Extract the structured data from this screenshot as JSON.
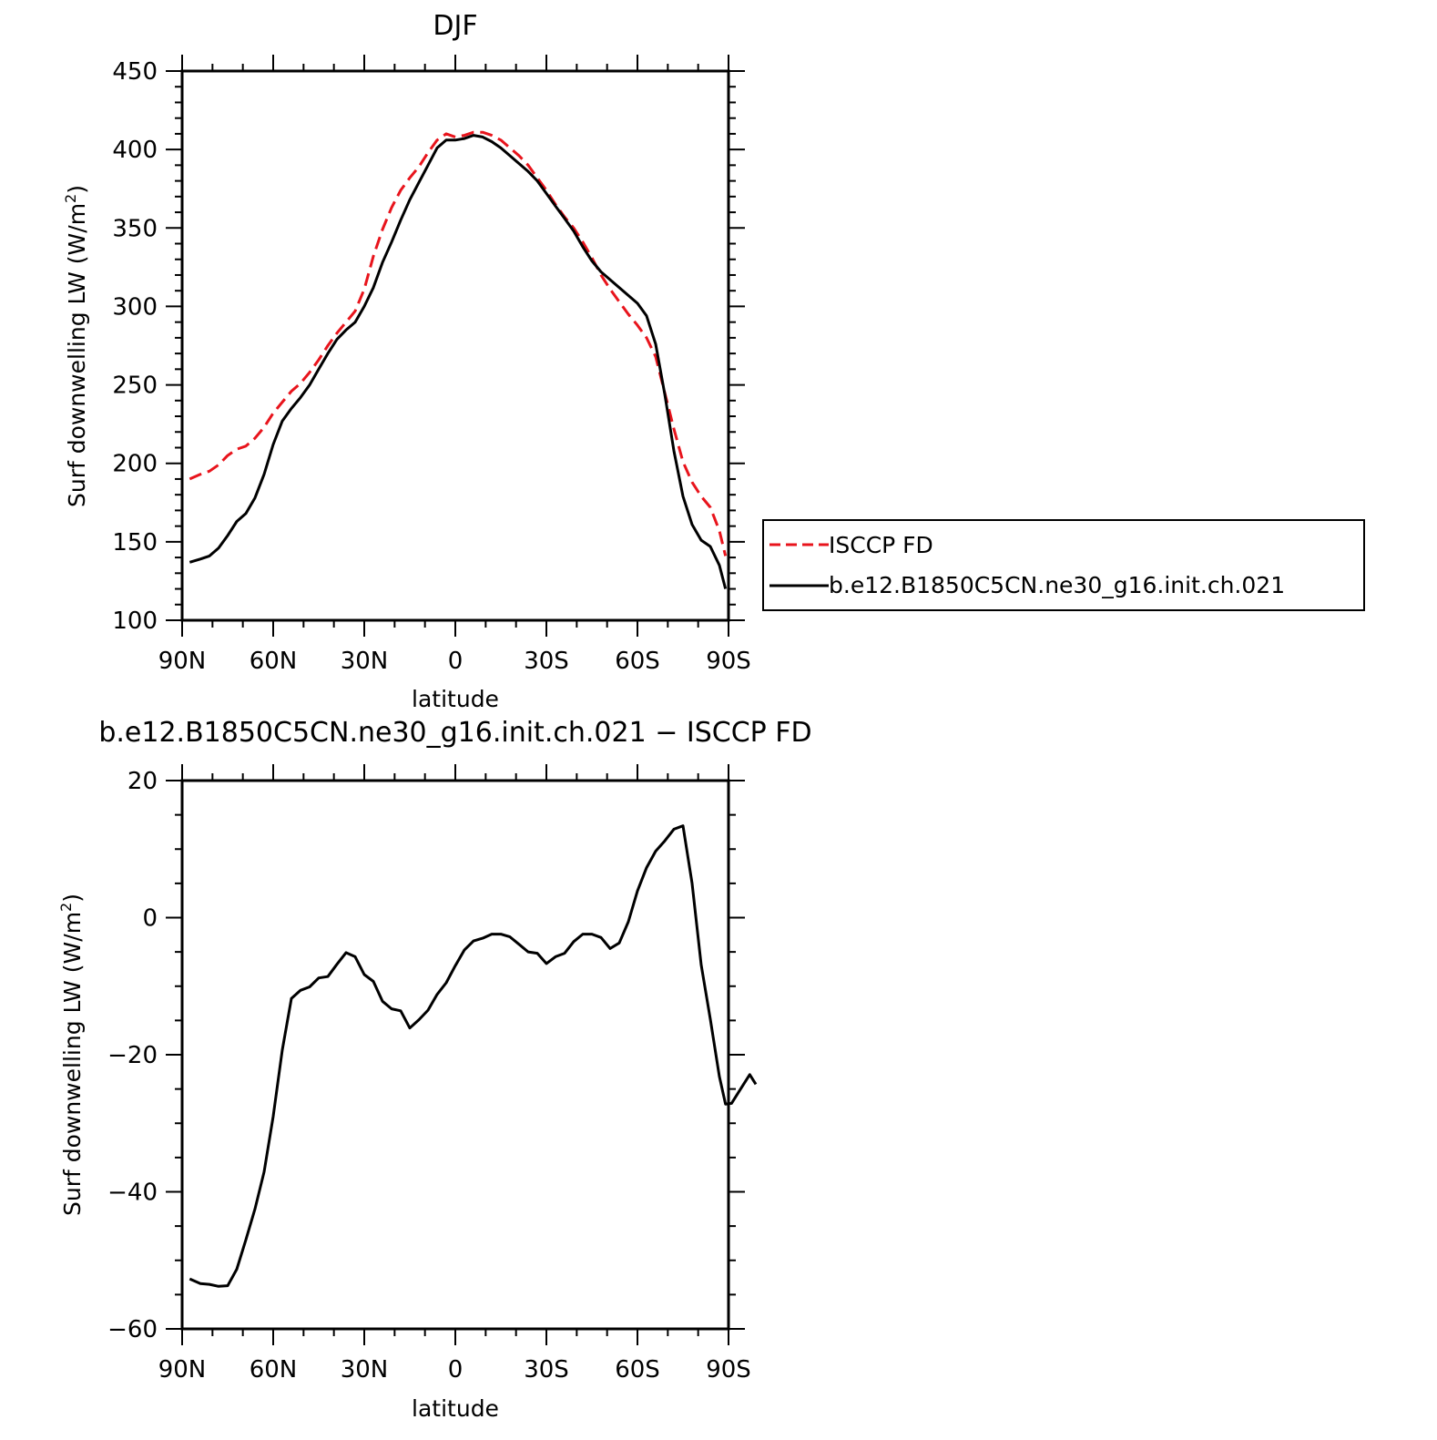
{
  "colors": {
    "obs": "#e8141c",
    "model": "#000000",
    "axis": "#000000",
    "background": "#ffffff"
  },
  "chart_data": [
    {
      "type": "line",
      "title": "DJF",
      "xlabel": "latitude",
      "ylabel_main": "Surf downwelling LW (W/m",
      "ylabel_sup": "2",
      "ylabel_close": ")",
      "xlim": [
        90,
        -90
      ],
      "ylim": [
        100,
        450
      ],
      "x_ticks": [
        {
          "v": 90,
          "label": "90N"
        },
        {
          "v": 60,
          "label": "60N"
        },
        {
          "v": 30,
          "label": "30N"
        },
        {
          "v": 0,
          "label": "0"
        },
        {
          "v": -30,
          "label": "30S"
        },
        {
          "v": -60,
          "label": "60S"
        },
        {
          "v": -90,
          "label": "90S"
        }
      ],
      "y_ticks": [
        100,
        150,
        200,
        250,
        300,
        350,
        400,
        450
      ],
      "y_ticks_label": [
        "100",
        "150",
        "200",
        "250",
        "300",
        "350",
        "400",
        "450"
      ],
      "legend": {
        "placement": "right",
        "entries": [
          "ISCCP FD",
          "b.e12.B1850C5CN.ne30_g16.init.ch.021"
        ]
      },
      "series": [
        {
          "name": "ISCCP FD",
          "color": "#e8141c",
          "dash": true,
          "points": [
            [
              87.5,
              190
            ],
            [
              84,
              193
            ],
            [
              81,
              195
            ],
            [
              78,
              199
            ],
            [
              75,
              205
            ],
            [
              72,
              209
            ],
            [
              69,
              211
            ],
            [
              66,
              216
            ],
            [
              63,
              223
            ],
            [
              60,
              232
            ],
            [
              57,
              239
            ],
            [
              54,
              246
            ],
            [
              51,
              251
            ],
            [
              48,
              258
            ],
            [
              45,
              266
            ],
            [
              42,
              275
            ],
            [
              39,
              283
            ],
            [
              36,
              290
            ],
            [
              33,
              297
            ],
            [
              30,
              311
            ],
            [
              27,
              332
            ],
            [
              24,
              349
            ],
            [
              21,
              363
            ],
            [
              18,
              374
            ],
            [
              15,
              382
            ],
            [
              12,
              389
            ],
            [
              9,
              398
            ],
            [
              6,
              406
            ],
            [
              3,
              410
            ],
            [
              0,
              408
            ],
            [
              -3,
              409
            ],
            [
              -6,
              411
            ],
            [
              -9,
              411
            ],
            [
              -12,
              409
            ],
            [
              -15,
              406
            ],
            [
              -18,
              401
            ],
            [
              -21,
              396
            ],
            [
              -24,
              390
            ],
            [
              -27,
              382
            ],
            [
              -30,
              374
            ],
            [
              -33,
              365
            ],
            [
              -36,
              357
            ],
            [
              -39,
              350
            ],
            [
              -42,
              341
            ],
            [
              -45,
              331
            ],
            [
              -48,
              320
            ],
            [
              -51,
              311
            ],
            [
              -54,
              303
            ],
            [
              -57,
              295
            ],
            [
              -60,
              288
            ],
            [
              -63,
              280
            ],
            [
              -66,
              268
            ],
            [
              -69,
              245
            ],
            [
              -72,
              222
            ],
            [
              -75,
              201
            ],
            [
              -78,
              188
            ],
            [
              -81,
              179
            ],
            [
              -84,
              172
            ],
            [
              -87,
              157
            ],
            [
              -89,
              141
            ]
          ]
        },
        {
          "name": "b.e12.B1850C5CN.ne30_g16.init.ch.021",
          "color": "#000000",
          "dash": false,
          "points": [
            [
              87.5,
              137
            ],
            [
              84,
              139
            ],
            [
              81,
              141
            ],
            [
              78,
              146
            ],
            [
              75,
              154
            ],
            [
              72,
              163
            ],
            [
              69,
              168
            ],
            [
              66,
              178
            ],
            [
              63,
              193
            ],
            [
              60,
              212
            ],
            [
              57,
              227
            ],
            [
              54,
              235
            ],
            [
              51,
              242
            ],
            [
              48,
              250
            ],
            [
              45,
              260
            ],
            [
              42,
              270
            ],
            [
              39,
              279
            ],
            [
              36,
              285
            ],
            [
              33,
              290
            ],
            [
              30,
              300
            ],
            [
              27,
              312
            ],
            [
              24,
              328
            ],
            [
              21,
              341
            ],
            [
              18,
              355
            ],
            [
              15,
              368
            ],
            [
              12,
              379
            ],
            [
              9,
              390
            ],
            [
              6,
              401
            ],
            [
              3,
              406
            ],
            [
              0,
              406
            ],
            [
              -3,
              407
            ],
            [
              -6,
              409
            ],
            [
              -9,
              408
            ],
            [
              -12,
              405
            ],
            [
              -15,
              401
            ],
            [
              -18,
              396
            ],
            [
              -21,
              391
            ],
            [
              -24,
              386
            ],
            [
              -27,
              380
            ],
            [
              -30,
              372
            ],
            [
              -33,
              364
            ],
            [
              -36,
              356
            ],
            [
              -39,
              348
            ],
            [
              -42,
              338
            ],
            [
              -45,
              329
            ],
            [
              -48,
              322
            ],
            [
              -51,
              317
            ],
            [
              -54,
              312
            ],
            [
              -57,
              307
            ],
            [
              -60,
              302
            ],
            [
              -63,
              294
            ],
            [
              -66,
              276
            ],
            [
              -69,
              244
            ],
            [
              -72,
              208
            ],
            [
              -75,
              179
            ],
            [
              -78,
              161
            ],
            [
              -81,
              151
            ],
            [
              -84,
              147
            ],
            [
              -87,
              135
            ],
            [
              -89,
              120
            ]
          ]
        }
      ]
    },
    {
      "type": "line",
      "title": "b.e12.B1850C5CN.ne30_g16.init.ch.021 − ISCCP FD",
      "xlabel": "latitude",
      "ylabel_main": "Surf downwelling LW (W/m",
      "ylabel_sup": "2",
      "ylabel_close": ")",
      "xlim": [
        90,
        -90
      ],
      "ylim": [
        -60,
        20
      ],
      "x_ticks": [
        {
          "v": 90,
          "label": "90N"
        },
        {
          "v": 60,
          "label": "60N"
        },
        {
          "v": 30,
          "label": "30N"
        },
        {
          "v": 0,
          "label": "0"
        },
        {
          "v": -30,
          "label": "30S"
        },
        {
          "v": -60,
          "label": "60S"
        },
        {
          "v": -90,
          "label": "90S"
        }
      ],
      "y_ticks": [
        -60,
        -40,
        -20,
        0,
        20
      ],
      "y_ticks_label": [
        "−60",
        "−40",
        "−20",
        "0",
        "20"
      ],
      "series": [
        {
          "name": "b.e12.B1850C5CN.ne30_g16.init.ch.021 − ISCCP FD",
          "color": "#000000",
          "dash": false,
          "points": [
            [
              87.5,
              -52.7
            ],
            [
              84,
              -53.4
            ],
            [
              81,
              -53.5
            ],
            [
              78,
              -53.8
            ],
            [
              75,
              -53.7
            ],
            [
              72,
              -51.3
            ],
            [
              69,
              -47.0
            ],
            [
              66,
              -42.5
            ],
            [
              63,
              -37.1
            ],
            [
              60,
              -29.0
            ],
            [
              57,
              -19.3
            ],
            [
              54,
              -11.8
            ],
            [
              51,
              -10.6
            ],
            [
              48,
              -10.1
            ],
            [
              45,
              -8.8
            ],
            [
              42,
              -8.6
            ],
            [
              39,
              -6.8
            ],
            [
              36,
              -5.1
            ],
            [
              33,
              -5.7
            ],
            [
              30,
              -8.3
            ],
            [
              27,
              -9.3
            ],
            [
              24,
              -12.2
            ],
            [
              21,
              -13.3
            ],
            [
              18,
              -13.6
            ],
            [
              15,
              -16.1
            ],
            [
              12,
              -14.9
            ],
            [
              9,
              -13.5
            ],
            [
              6,
              -11.2
            ],
            [
              3,
              -9.5
            ],
            [
              0,
              -7.0
            ],
            [
              -3,
              -4.7
            ],
            [
              -6,
              -3.4
            ],
            [
              -9,
              -3.0
            ],
            [
              -12,
              -2.4
            ],
            [
              -15,
              -2.4
            ],
            [
              -18,
              -2.8
            ],
            [
              -21,
              -3.9
            ],
            [
              -24,
              -5.0
            ],
            [
              -27,
              -5.2
            ],
            [
              -30,
              -6.7
            ],
            [
              -33,
              -5.7
            ],
            [
              -36,
              -5.2
            ],
            [
              -39,
              -3.5
            ],
            [
              -42,
              -2.4
            ],
            [
              -45,
              -2.4
            ],
            [
              -48,
              -2.9
            ],
            [
              -51,
              -4.5
            ],
            [
              -54,
              -3.7
            ],
            [
              -57,
              -0.6
            ],
            [
              -60,
              3.9
            ],
            [
              -63,
              7.3
            ],
            [
              -66,
              9.7
            ],
            [
              -69,
              11.2
            ],
            [
              -72,
              12.9
            ],
            [
              -75,
              13.4
            ],
            [
              -78,
              5.0
            ],
            [
              -81,
              -6.9
            ],
            [
              -84,
              -14.8
            ],
            [
              -87,
              -23.2
            ],
            [
              -89,
              -27.2
            ],
            [
              -91,
              -27.1
            ],
            [
              -94,
              -25.0
            ],
            [
              -97,
              -22.9
            ],
            [
              -99,
              -24.3
            ]
          ]
        }
      ]
    }
  ]
}
